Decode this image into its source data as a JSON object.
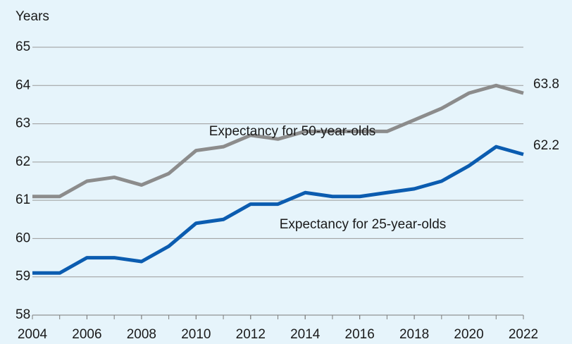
{
  "chart_data": {
    "type": "line",
    "y_axis_label": "Years",
    "x": [
      2004,
      2005,
      2006,
      2007,
      2008,
      2009,
      2010,
      2011,
      2012,
      2013,
      2014,
      2015,
      2016,
      2017,
      2018,
      2019,
      2020,
      2021,
      2022
    ],
    "series": [
      {
        "name": "Expectancy for 50-year-olds",
        "color": "#8c8c8c",
        "values": [
          61.1,
          61.1,
          61.5,
          61.6,
          61.4,
          61.7,
          62.3,
          62.4,
          62.7,
          62.6,
          62.8,
          62.8,
          62.8,
          62.8,
          63.1,
          63.4,
          63.8,
          64.0,
          63.8
        ]
      },
      {
        "name": "Expectancy for 25-year-olds",
        "color": "#0b5cb0",
        "values": [
          59.1,
          59.1,
          59.5,
          59.5,
          59.4,
          59.8,
          60.4,
          60.5,
          60.9,
          60.9,
          61.2,
          61.1,
          61.1,
          61.2,
          61.3,
          61.5,
          61.9,
          62.4,
          62.2
        ]
      }
    ],
    "xlim": [
      2004,
      2022
    ],
    "xticks": [
      2004,
      2006,
      2008,
      2010,
      2012,
      2014,
      2016,
      2018,
      2020,
      2022
    ],
    "ylim": [
      58,
      65
    ],
    "yticks": [
      58,
      59,
      60,
      61,
      62,
      63,
      64,
      65
    ],
    "grid": true
  }
}
